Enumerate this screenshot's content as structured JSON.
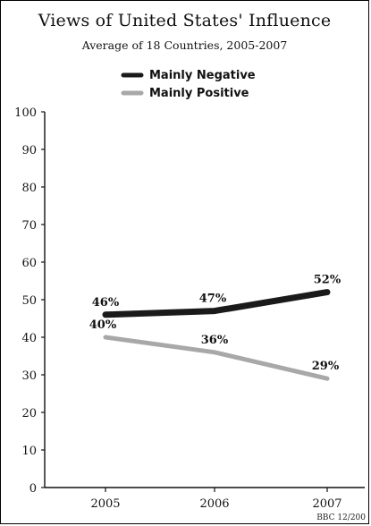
{
  "chart_data": {
    "type": "line",
    "title": "Views of United States' Influence",
    "subtitle": "Average of 18 Countries, 2005-2007",
    "categories": [
      "2005",
      "2006",
      "2007"
    ],
    "series": [
      {
        "name": "Mainly Negative",
        "values": [
          46,
          47,
          52
        ],
        "labels": [
          "46%",
          "47%",
          "52%"
        ],
        "color": "#1a1a1a"
      },
      {
        "name": "Mainly Positive",
        "values": [
          40,
          36,
          29
        ],
        "labels": [
          "40%",
          "36%",
          "29%"
        ],
        "color": "#a8a8a8"
      }
    ],
    "y_ticks": [
      "0",
      "10",
      "20",
      "30",
      "40",
      "50",
      "60",
      "70",
      "80",
      "90",
      "100"
    ],
    "ylim": [
      0,
      100
    ],
    "legend_position": "top-center",
    "grid": false,
    "credit": "BBC 12/200"
  }
}
